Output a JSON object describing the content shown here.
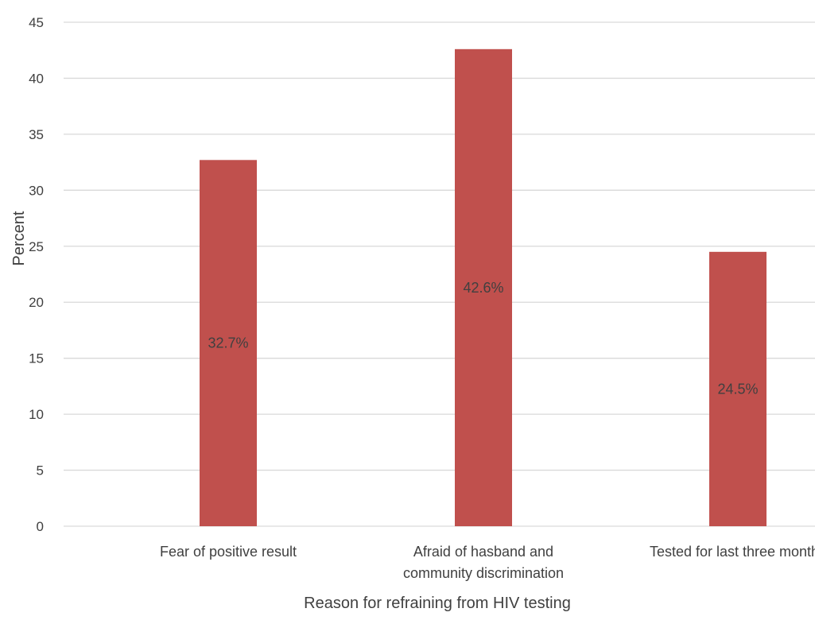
{
  "chart_data": {
    "type": "bar",
    "title": "",
    "xlabel": "Reason for refraining from HIV testing",
    "ylabel": "Percent",
    "ylim": [
      0,
      45
    ],
    "ytick_step": 5,
    "grid": true,
    "categories": [
      [
        "Fear of positive result"
      ],
      [
        "Afraid of  hasband and",
        "community discrimination"
      ],
      [
        "Tested for last three months"
      ]
    ],
    "values": [
      32.7,
      42.6,
      24.5
    ],
    "data_labels": [
      "32.7%",
      "42.6%",
      "24.5%"
    ],
    "bar_color": "#c0504d"
  }
}
